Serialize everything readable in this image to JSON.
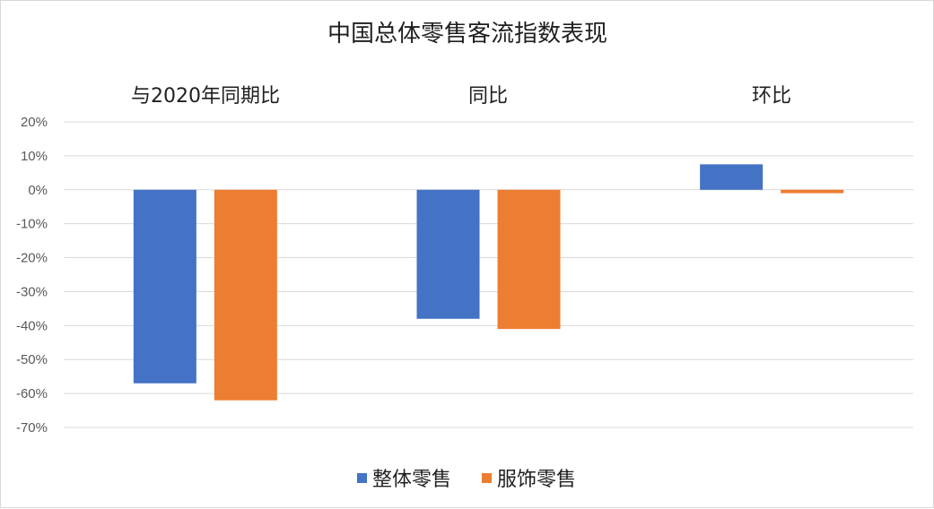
{
  "chart_data": {
    "type": "bar",
    "title": "中国总体零售客流指数表现",
    "categories": [
      "与2020年同期比",
      "同比",
      "环比"
    ],
    "series": [
      {
        "name": "整体零售",
        "color": "#4472c4",
        "values": [
          -0.57,
          -0.38,
          0.075
        ]
      },
      {
        "name": "服饰零售",
        "color": "#ed7d31",
        "values": [
          -0.62,
          -0.41,
          -0.01
        ]
      }
    ],
    "y_ticks": [
      "20%",
      "10%",
      "0%",
      "-10%",
      "-20%",
      "-30%",
      "-40%",
      "-50%",
      "-60%",
      "-70%"
    ],
    "ylim": [
      -0.7,
      0.2
    ],
    "grid": true,
    "legend_position": "bottom"
  }
}
